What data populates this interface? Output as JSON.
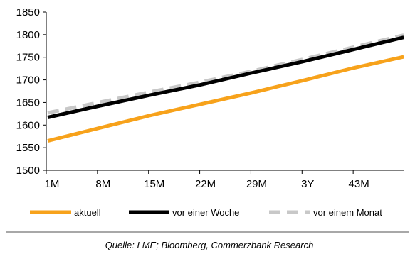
{
  "chart_data": {
    "type": "line",
    "x_tick_labels": [
      "1M",
      "8M",
      "15M",
      "22M",
      "29M",
      "3Y",
      "43M"
    ],
    "ylim": [
      1500,
      1850
    ],
    "y_ticks": [
      1500,
      1550,
      1600,
      1650,
      1700,
      1750,
      1800,
      1850
    ],
    "grid": false,
    "legend_position": "bottom",
    "series": [
      {
        "name": "aktuell",
        "color": "#f7a21b",
        "style": "solid",
        "values": [
          1565,
          1593,
          1621,
          1646,
          1671,
          1698,
          1726,
          1751
        ]
      },
      {
        "name": "vor einer Woche",
        "color": "#000000",
        "style": "solid",
        "values": [
          1617,
          1642,
          1666,
          1689,
          1715,
          1740,
          1767,
          1794
        ]
      },
      {
        "name": "vor einem Monat",
        "color": "#c8c8c8",
        "style": "dashed",
        "values": [
          1627,
          1650,
          1673,
          1695,
          1719,
          1745,
          1772,
          1799
        ]
      }
    ]
  },
  "source_note": "Quelle: LME; Bloomberg, Commerzbank Research"
}
